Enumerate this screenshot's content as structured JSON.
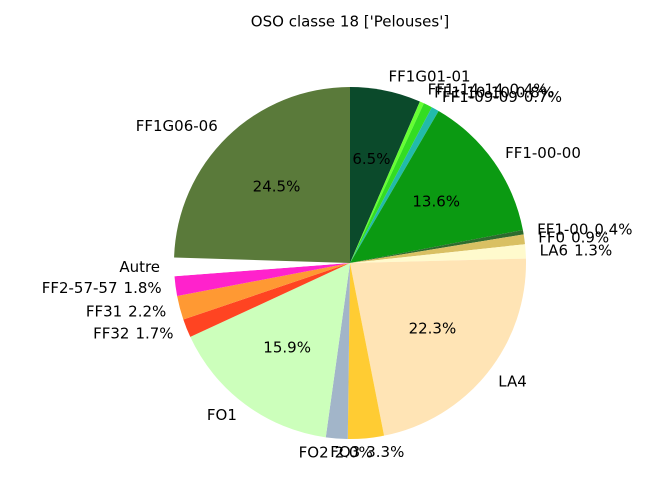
{
  "chart_data": {
    "type": "pie",
    "title": "OSO classe 18 ['Pelouses']",
    "categories": [
      "FF1G01-01",
      "FF1-14-14",
      "FF1-10-10",
      "FF1-09-09",
      "FF1-00-00",
      "FF1-00",
      "FF0",
      "LA6",
      "LA4",
      "FO3",
      "FO2",
      "FO1",
      "FF32",
      "FF31",
      "FF2-57-57",
      "Autre",
      "FF1G06-06"
    ],
    "values": [
      6.5,
      0.4,
      0.8,
      0.7,
      13.6,
      0.4,
      0.9,
      1.3,
      22.3,
      3.3,
      2.0,
      15.9,
      1.7,
      2.2,
      1.8,
      1.7,
      24.5
    ],
    "value_labels": [
      "6.5%",
      "0.4%",
      "0.8%",
      "0.7%",
      "13.6%",
      "0.4%",
      "0.9%",
      "1.3%",
      "22.3%",
      "3.3%",
      "2.0%",
      "15.9%",
      "1.7%",
      "2.2%",
      "1.8%",
      null,
      "24.5%"
    ],
    "colors": [
      "#0b4a2b",
      "#66ff33",
      "#33dd22",
      "#22bbaa",
      "#0b9a12",
      "#2e6b2e",
      "#d9c063",
      "#fffacd",
      "#ffe4b5",
      "#ffcc33",
      "#a2b5c9",
      "#ccffbb",
      "#ff4422",
      "#ff9933",
      "#ff22cc",
      "#ffffff",
      "#5a7a3a"
    ]
  }
}
